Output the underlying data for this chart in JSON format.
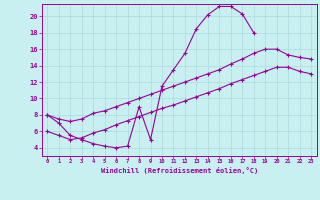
{
  "xlabel": "Windchill (Refroidissement éolien,°C)",
  "bg_color": "#c8f0f0",
  "line_color": "#990099",
  "xlim": [
    -0.5,
    23.5
  ],
  "ylim": [
    3.0,
    21.5
  ],
  "xticks": [
    0,
    1,
    2,
    3,
    4,
    5,
    6,
    7,
    8,
    9,
    10,
    11,
    12,
    13,
    14,
    15,
    16,
    17,
    18,
    19,
    20,
    21,
    22,
    23
  ],
  "yticks": [
    4,
    6,
    8,
    10,
    12,
    14,
    16,
    18,
    20
  ],
  "grid_color": "#b0dede",
  "curve1_x": [
    0,
    1,
    2,
    3,
    4,
    5,
    6,
    7,
    8,
    9,
    10,
    11,
    12,
    13,
    14,
    15,
    16,
    17,
    18
  ],
  "curve1_y": [
    8.0,
    7.0,
    5.5,
    5.0,
    4.5,
    4.2,
    4.0,
    4.2,
    9.0,
    5.0,
    11.5,
    13.5,
    15.5,
    18.5,
    20.2,
    21.2,
    21.2,
    20.3,
    18.0
  ],
  "curve2_x": [
    0,
    1,
    2,
    3,
    4,
    5,
    6,
    7,
    8,
    9,
    10,
    11,
    12,
    13,
    14,
    15,
    16,
    17,
    18,
    19,
    20,
    21,
    22,
    23
  ],
  "curve2_y": [
    8.0,
    7.5,
    7.2,
    7.5,
    8.2,
    8.5,
    9.0,
    9.5,
    10.0,
    10.5,
    11.0,
    11.5,
    12.0,
    12.5,
    13.0,
    13.5,
    14.2,
    14.8,
    15.5,
    16.0,
    16.0,
    15.3,
    15.0,
    14.8
  ],
  "curve3_x": [
    0,
    1,
    2,
    3,
    4,
    5,
    6,
    7,
    8,
    9,
    10,
    11,
    12,
    13,
    14,
    15,
    16,
    17,
    18,
    19,
    20,
    21,
    22,
    23
  ],
  "curve3_y": [
    6.0,
    5.5,
    5.0,
    5.2,
    5.8,
    6.2,
    6.8,
    7.3,
    7.8,
    8.3,
    8.8,
    9.2,
    9.7,
    10.2,
    10.7,
    11.2,
    11.8,
    12.3,
    12.8,
    13.3,
    13.8,
    13.8,
    13.3,
    13.0
  ],
  "marker": "+"
}
